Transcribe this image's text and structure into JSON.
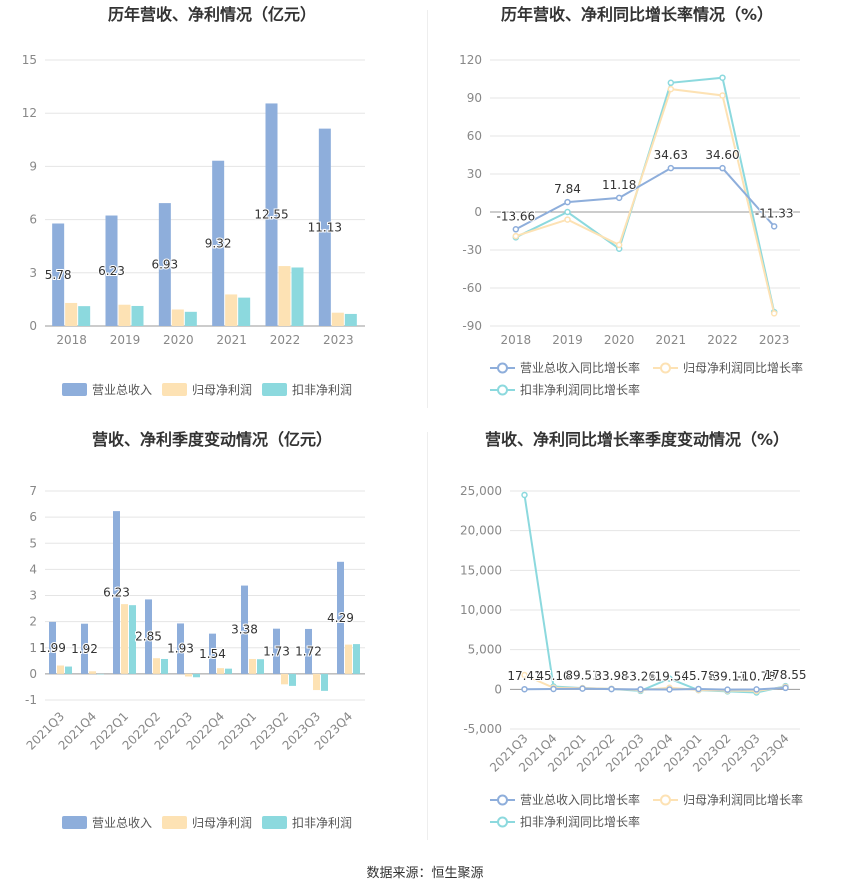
{
  "source_text": "数据来源：恒生聚源",
  "colors": {
    "revenue": "#8eaedb",
    "net_profit": "#fde2b4",
    "deducted_profit": "#8cd9de",
    "grid": "#e5e5e5",
    "axis_text": "#888888",
    "title_text": "#333333"
  },
  "chart_data": [
    {
      "type": "bar",
      "title": "历年营收、净利情况（亿元）",
      "categories": [
        "2018",
        "2019",
        "2020",
        "2021",
        "2022",
        "2023"
      ],
      "ylim": [
        0,
        15
      ],
      "yticks": [
        0,
        3,
        6,
        9,
        12,
        15
      ],
      "grid": true,
      "legend_position": "bottom",
      "series": [
        {
          "name": "营业总收入",
          "values": [
            5.78,
            6.23,
            6.93,
            9.32,
            12.55,
            11.13
          ],
          "labels": [
            "5.78",
            "6.23",
            "6.93",
            "9.32",
            "12.55",
            "11.13"
          ]
        },
        {
          "name": "归母净利润",
          "values": [
            1.3,
            1.2,
            0.93,
            1.78,
            3.38,
            0.75
          ]
        },
        {
          "name": "扣非净利润",
          "values": [
            1.12,
            1.13,
            0.8,
            1.6,
            3.3,
            0.68
          ]
        }
      ]
    },
    {
      "type": "line",
      "title": "历年营收、净利同比增长率情况（%）",
      "categories": [
        "2018",
        "2019",
        "2020",
        "2021",
        "2022",
        "2023"
      ],
      "ylim": [
        -90,
        120
      ],
      "yticks": [
        -90,
        -60,
        -30,
        0,
        30,
        60,
        90,
        120
      ],
      "grid": true,
      "legend_position": "bottom",
      "series": [
        {
          "name": "营业总收入同比增长率",
          "values": [
            -13.66,
            7.84,
            11.18,
            34.63,
            34.6,
            -11.33
          ],
          "labels": [
            "-13.66",
            "7.84",
            "11.18",
            "34.63",
            "34.60",
            "-11.33"
          ]
        },
        {
          "name": "归母净利润同比增长率",
          "values": [
            -19,
            -6,
            -26,
            97,
            92,
            -80
          ]
        },
        {
          "name": "扣非净利润同比增长率",
          "values": [
            -20,
            0,
            -29,
            102,
            106,
            -79
          ]
        }
      ]
    },
    {
      "type": "bar",
      "title": "营收、净利季度变动情况（亿元）",
      "categories": [
        "2021Q3",
        "2021Q4",
        "2022Q1",
        "2022Q2",
        "2022Q3",
        "2022Q4",
        "2023Q1",
        "2023Q2",
        "2023Q3",
        "2023Q4"
      ],
      "ylim": [
        -1,
        7
      ],
      "yticks": [
        -1,
        0,
        1,
        2,
        3,
        4,
        5,
        6,
        7
      ],
      "grid": true,
      "legend_position": "bottom",
      "series": [
        {
          "name": "营业总收入",
          "values": [
            1.99,
            1.92,
            6.23,
            2.85,
            1.93,
            1.54,
            3.38,
            1.73,
            1.72,
            4.29
          ],
          "labels": [
            "1.99",
            "1.92",
            "6.23",
            "2.85",
            "1.93",
            "1.54",
            "3.38",
            "1.73",
            "1.72",
            "4.29"
          ]
        },
        {
          "name": "归母净利润",
          "values": [
            0.32,
            0.1,
            2.67,
            0.6,
            -0.1,
            0.22,
            0.57,
            -0.4,
            -0.62,
            1.12
          ]
        },
        {
          "name": "扣非净利润",
          "values": [
            0.28,
            -0.02,
            2.63,
            0.57,
            -0.13,
            0.2,
            0.56,
            -0.46,
            -0.65,
            1.14
          ]
        }
      ]
    },
    {
      "type": "line",
      "title": "营收、净利同比增长率季度变动情况（%）",
      "categories": [
        "2021Q3",
        "2021Q4",
        "2022Q1",
        "2022Q2",
        "2022Q3",
        "2022Q4",
        "2023Q1",
        "2023Q2",
        "2023Q3",
        "2023Q4"
      ],
      "ylim": [
        -5000,
        25000
      ],
      "yticks": [
        -5000,
        0,
        5000,
        10000,
        15000,
        20000,
        25000
      ],
      "ytick_labels": [
        "-5,000",
        "0",
        "5,000",
        "10,000",
        "15,000",
        "20,000",
        "25,000"
      ],
      "grid": true,
      "legend_position": "bottom",
      "series": [
        {
          "name": "营业总收入同比增长率",
          "values": [
            17.41,
            45.1,
            89.51,
            33.98,
            -3.26,
            -19.56,
            45.78,
            -39.11,
            -10.78,
            178.55
          ],
          "labels": [
            "17.41",
            "45.10",
            "89.51",
            "33.98",
            "-3.26",
            "-19.56",
            "45.78",
            "-39.11",
            "-10.78",
            "178.55"
          ]
        },
        {
          "name": "归母净利润同比增长率",
          "values": [
            1800,
            200,
            150,
            60,
            -100,
            200,
            -80,
            -150,
            -200,
            300
          ]
        },
        {
          "name": "扣非净利润同比增长率",
          "values": [
            24500,
            350,
            150,
            60,
            -200,
            1350,
            -100,
            -250,
            -400,
            400
          ]
        }
      ]
    }
  ]
}
